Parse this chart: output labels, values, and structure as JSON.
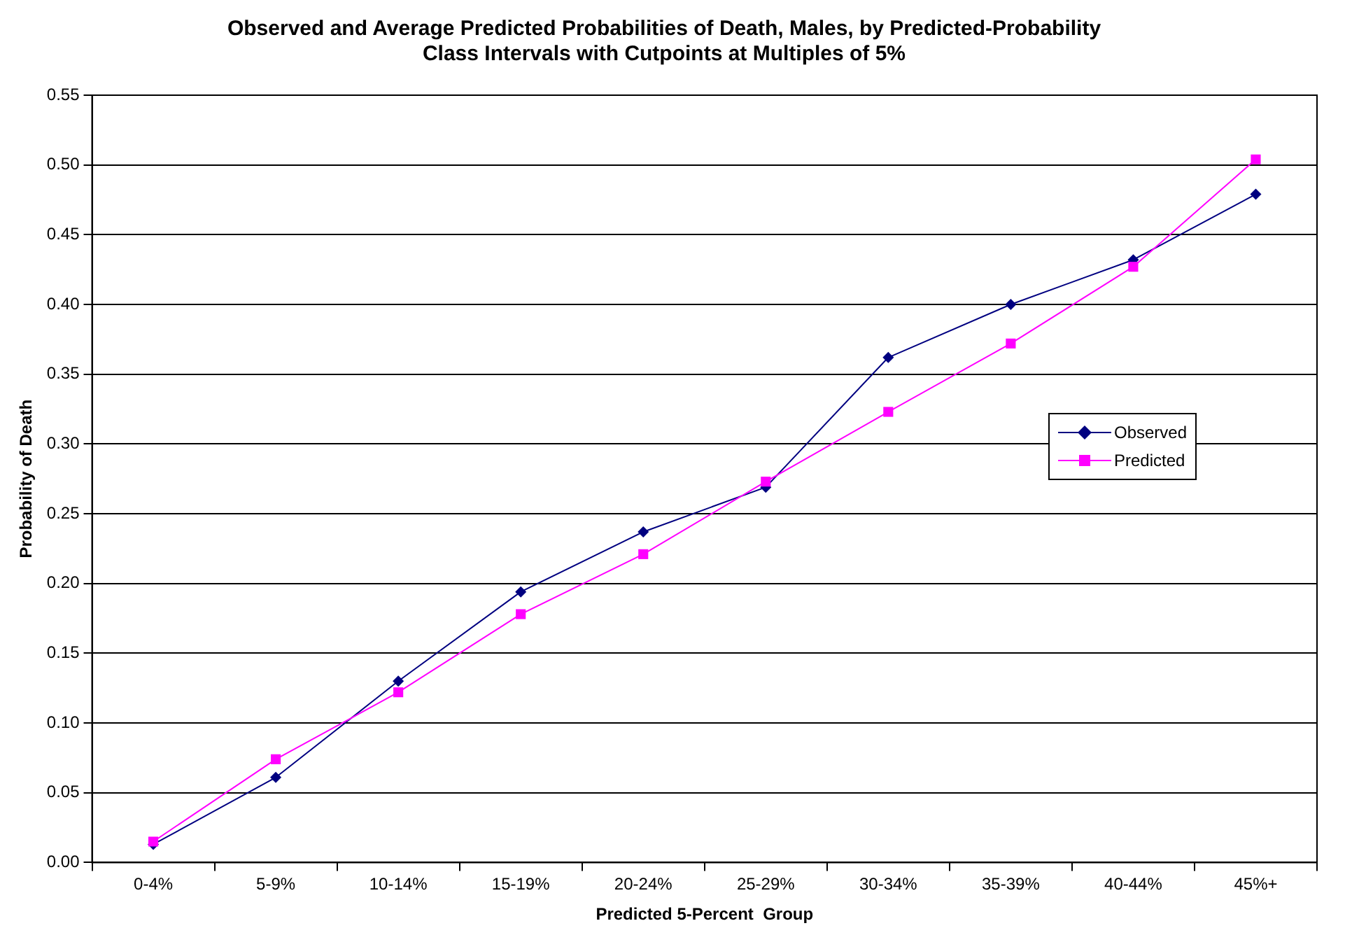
{
  "chart_data": {
    "type": "line",
    "title": [
      "Observed and Average Predicted Probabilities of Death, Males, by Predicted-Probability",
      "Class Intervals with Cutpoints at Multiples of 5%"
    ],
    "xlabel": "Predicted 5-Percent  Group",
    "ylabel": "Probability of Death",
    "categories": [
      "0-4%",
      "5-9%",
      "10-14%",
      "15-19%",
      "20-24%",
      "25-29%",
      "30-34%",
      "35-39%",
      "40-44%",
      "45%+"
    ],
    "series": [
      {
        "name": "Observed",
        "color": "#000080",
        "marker": "diamond",
        "values": [
          0.013,
          0.061,
          0.13,
          0.194,
          0.237,
          0.269,
          0.362,
          0.4,
          0.432,
          0.479
        ]
      },
      {
        "name": "Predicted",
        "color": "#ff00ff",
        "marker": "square",
        "values": [
          0.015,
          0.074,
          0.122,
          0.178,
          0.221,
          0.273,
          0.323,
          0.372,
          0.427,
          0.504
        ]
      }
    ],
    "ylim": [
      0,
      0.55
    ],
    "yticks": [
      {
        "value": 0,
        "label": "0.00"
      },
      {
        "value": 0.05,
        "label": "0.05"
      },
      {
        "value": 0.1,
        "label": "0.10"
      },
      {
        "value": 0.15,
        "label": "0.15"
      },
      {
        "value": 0.2,
        "label": "0.20"
      },
      {
        "value": 0.25,
        "label": "0.25"
      },
      {
        "value": 0.3,
        "label": "0.30"
      },
      {
        "value": 0.35,
        "label": "0.35"
      },
      {
        "value": 0.4,
        "label": "0.40"
      },
      {
        "value": 0.45,
        "label": "0.45"
      },
      {
        "value": 0.5,
        "label": "0.50"
      },
      {
        "value": 0.55,
        "label": "0.55"
      }
    ],
    "grid": "y",
    "legend": "right",
    "line_style": "solid"
  }
}
